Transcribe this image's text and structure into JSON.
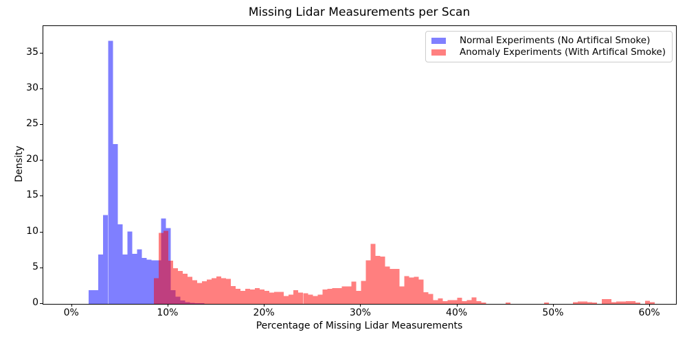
{
  "title": "Missing Lidar Measurements per Scan",
  "axes": {
    "xlabel": "Percentage of Missing Lidar Measurements",
    "ylabel": "Density",
    "xlim_pct": [
      -2.97,
      62.7
    ],
    "ylim_density": [
      0,
      38.78
    ],
    "x_ticks": [
      {
        "pct": 0,
        "label": "0%"
      },
      {
        "pct": 10,
        "label": "10%"
      },
      {
        "pct": 20,
        "label": "20%"
      },
      {
        "pct": 30,
        "label": "30%"
      },
      {
        "pct": 40,
        "label": "40%"
      },
      {
        "pct": 50,
        "label": "50%"
      },
      {
        "pct": 60,
        "label": "60%"
      }
    ],
    "y_ticks": [
      {
        "value": 0,
        "label": "0"
      },
      {
        "value": 5,
        "label": "5"
      },
      {
        "value": 10,
        "label": "10"
      },
      {
        "value": 15,
        "label": "15"
      },
      {
        "value": 20,
        "label": "20"
      },
      {
        "value": 25,
        "label": "25"
      },
      {
        "value": 30,
        "label": "30"
      },
      {
        "value": 35,
        "label": "35"
      }
    ],
    "grid": false
  },
  "legend": {
    "position": "upper right",
    "items": [
      {
        "label": "Normal Experiments (No Artifical Smoke)",
        "swatch_color": "#8080ff"
      },
      {
        "label": "Anomaly Experiments (With Artifical Smoke)",
        "swatch_color": "#ff8080"
      }
    ]
  },
  "colors": {
    "normal_fill": "#0000ff",
    "anomaly_fill": "#ff0000",
    "fill_opacity": 0.5,
    "normal_on_white": "#8080ff",
    "anomaly_on_white": "#ff8080",
    "overlap": "#bf407f",
    "spine": "#000000"
  },
  "chart_data": {
    "type": "bar",
    "subtype": "overlaid-histogram-density",
    "title": "Missing Lidar Measurements per Scan",
    "xlabel": "Percentage of Missing Lidar Measurements",
    "ylabel": "Density",
    "xlim": [
      -2.97,
      62.7
    ],
    "ylim": [
      0,
      38.78
    ],
    "legend_position": "upper right",
    "bin_width_pct": 0.5,
    "series": [
      {
        "name": "Normal Experiments (No Artifical Smoke)",
        "fill": "#0000ff",
        "opacity": 0.5,
        "bin_start_pct": 1.75,
        "densities": [
          1.9,
          1.9,
          6.9,
          12.4,
          36.7,
          22.3,
          11.1,
          6.9,
          10.1,
          7.0,
          7.6,
          6.4,
          6.2,
          6.1,
          6.1,
          11.9,
          10.6,
          1.9,
          1.0,
          0.5,
          0.25,
          0.15,
          0.1,
          0.1
        ]
      },
      {
        "name": "Anomaly Experiments (With Artifical Smoke)",
        "fill": "#ff0000",
        "opacity": 0.5,
        "bin_start_pct": 8.5,
        "densities": [
          3.6,
          9.9,
          10.2,
          6.05,
          5.0,
          4.6,
          4.2,
          3.8,
          3.3,
          2.9,
          3.15,
          3.4,
          3.6,
          3.85,
          3.6,
          3.5,
          2.5,
          2.1,
          1.8,
          2.1,
          2.0,
          2.2,
          2.0,
          1.8,
          1.6,
          1.7,
          1.7,
          1.1,
          1.3,
          1.9,
          1.6,
          1.5,
          1.3,
          1.1,
          1.3,
          2.0,
          2.1,
          2.2,
          2.2,
          2.45,
          2.45,
          3.1,
          1.8,
          3.2,
          6.1,
          8.4,
          6.7,
          6.6,
          5.2,
          4.9,
          4.9,
          2.45,
          3.9,
          3.7,
          3.8,
          3.4,
          1.65,
          1.4,
          0.55,
          0.75,
          0.4,
          0.55,
          0.55,
          0.85,
          0.4,
          0.55,
          0.9,
          0.4,
          0.2,
          0,
          0,
          0,
          0,
          0.2,
          0,
          0,
          0,
          0,
          0,
          0,
          0,
          0.2,
          0,
          0,
          0,
          0,
          0,
          0.25,
          0.35,
          0.35,
          0.25,
          0.2,
          0,
          0.65,
          0.65,
          0.25,
          0.35,
          0.35,
          0.4,
          0.4,
          0.2,
          0,
          0.45,
          0.25
        ]
      }
    ]
  }
}
